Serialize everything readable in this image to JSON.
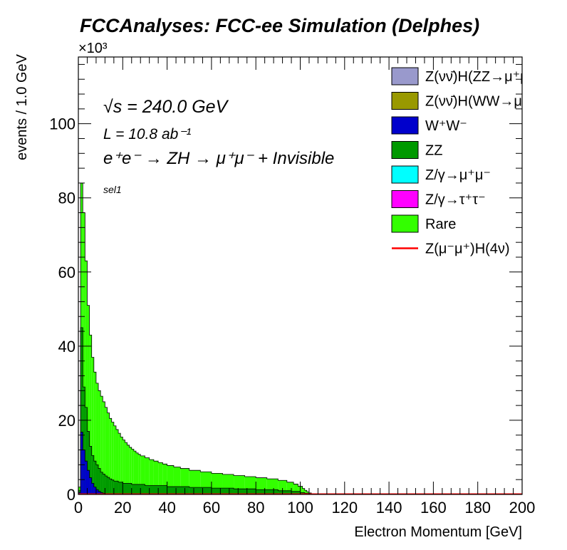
{
  "chart_data": {
    "type": "histogram-stacked",
    "title": "FCCAnalyses: FCC-ee Simulation (Delphes)",
    "xlabel": "Electron Momentum [GeV]",
    "ylabel": "events / 1.0 GeV",
    "y_multiplier": "×10³",
    "xlim": [
      0,
      200
    ],
    "ylim": [
      0,
      118
    ],
    "x_ticks": [
      "0",
      "20",
      "40",
      "60",
      "80",
      "100",
      "120",
      "140",
      "160",
      "180",
      "200"
    ],
    "y_ticks": [
      "0",
      "20",
      "40",
      "60",
      "80",
      "100"
    ],
    "bin_width": 1.0,
    "annotations": {
      "energy": "√s = 240.0 GeV",
      "lumi": "L = 10.8 ab⁻¹",
      "process": "e⁺e⁻ → ZH → μ⁺μ⁻ + Invisible",
      "selection": "sel1"
    },
    "legend": [
      {
        "label": "Z(νν̄)H(ZZ→μ⁺μ⁻ν⁺",
        "color": "#9999cc",
        "style": "box"
      },
      {
        "label": "Z(νν̄)H(WW→μ⁺νμ",
        "color": "#999900",
        "style": "box"
      },
      {
        "label": "W⁺W⁻",
        "color": "#0000cc",
        "style": "box"
      },
      {
        "label": "ZZ",
        "color": "#009900",
        "style": "box"
      },
      {
        "label": "Z/γ→μ⁺μ⁻",
        "color": "#00ffff",
        "style": "box"
      },
      {
        "label": "Z/γ→τ⁺τ⁻",
        "color": "#ff00ff",
        "style": "box"
      },
      {
        "label": "Rare",
        "color": "#33ff00",
        "style": "box"
      },
      {
        "label": "Z(μ⁻μ⁺)H(4ν)",
        "color": "#ff0000",
        "style": "line"
      }
    ],
    "series": [
      {
        "name": "W⁺W⁻",
        "color": "#0000cc",
        "bins": [
          {
            "range": [
              0,
              1
            ],
            "y": 0.5
          },
          {
            "range": [
              1,
              2
            ],
            "y": 16.8
          },
          {
            "range": [
              2,
              3
            ],
            "y": 12.0
          },
          {
            "range": [
              3,
              4
            ],
            "y": 9.0
          },
          {
            "range": [
              4,
              5
            ],
            "y": 6.5
          },
          {
            "range": [
              5,
              6
            ],
            "y": 4.5
          },
          {
            "range": [
              6,
              7
            ],
            "y": 3.0
          },
          {
            "range": [
              7,
              8
            ],
            "y": 2.0
          },
          {
            "range": [
              8,
              9
            ],
            "y": 1.3
          },
          {
            "range": [
              9,
              10
            ],
            "y": 0.8
          },
          {
            "range": [
              10,
              11
            ],
            "y": 0.5
          },
          {
            "range": [
              11,
              12
            ],
            "y": 0.3
          },
          {
            "range": [
              12,
              14
            ],
            "y": 0.2
          },
          {
            "range": [
              14,
              20
            ],
            "y": 0.1
          },
          {
            "range": [
              20,
              200
            ],
            "y": 0.0
          }
        ]
      },
      {
        "name": "ZZ",
        "color": "#009900",
        "bins": [
          {
            "range": [
              0,
              1
            ],
            "y": 1.0
          },
          {
            "range": [
              1,
              2
            ],
            "y": 45.0
          },
          {
            "range": [
              2,
              3
            ],
            "y": 29.0
          },
          {
            "range": [
              3,
              4
            ],
            "y": 23.5
          },
          {
            "range": [
              4,
              5
            ],
            "y": 17.0
          },
          {
            "range": [
              5,
              6
            ],
            "y": 13.0
          },
          {
            "range": [
              6,
              7
            ],
            "y": 10.5
          },
          {
            "range": [
              7,
              8
            ],
            "y": 9.0
          },
          {
            "range": [
              8,
              9
            ],
            "y": 8.0
          },
          {
            "range": [
              9,
              10
            ],
            "y": 7.0
          },
          {
            "range": [
              10,
              11
            ],
            "y": 6.0
          },
          {
            "range": [
              11,
              12
            ],
            "y": 5.5
          },
          {
            "range": [
              12,
              13
            ],
            "y": 5.0
          },
          {
            "range": [
              13,
              14
            ],
            "y": 4.6
          },
          {
            "range": [
              14,
              15
            ],
            "y": 4.2
          },
          {
            "range": [
              15,
              16
            ],
            "y": 3.9
          },
          {
            "range": [
              16,
              18
            ],
            "y": 3.6
          },
          {
            "range": [
              18,
              20
            ],
            "y": 3.3
          },
          {
            "range": [
              20,
              24
            ],
            "y": 3.0
          },
          {
            "range": [
              24,
              30
            ],
            "y": 2.7
          },
          {
            "range": [
              30,
              40
            ],
            "y": 2.4
          },
          {
            "range": [
              40,
              50
            ],
            "y": 2.1
          },
          {
            "range": [
              50,
              60
            ],
            "y": 1.9
          },
          {
            "range": [
              60,
              70
            ],
            "y": 1.7
          },
          {
            "range": [
              70,
              80
            ],
            "y": 1.5
          },
          {
            "range": [
              80,
              90
            ],
            "y": 1.3
          },
          {
            "range": [
              90,
              96
            ],
            "y": 1.0
          },
          {
            "range": [
              96,
              100
            ],
            "y": 0.8
          },
          {
            "range": [
              100,
              102
            ],
            "y": 0.5
          },
          {
            "range": [
              102,
              104
            ],
            "y": 0.3
          },
          {
            "range": [
              104,
              200
            ],
            "y": 0.0
          }
        ]
      },
      {
        "name": "Rare",
        "color": "#33ff00",
        "bins": [
          {
            "range": [
              0,
              1
            ],
            "y": 2.0
          },
          {
            "range": [
              1,
              2
            ],
            "y": 84.0
          },
          {
            "range": [
              2,
              3
            ],
            "y": 76.0
          },
          {
            "range": [
              3,
              4
            ],
            "y": 63.0
          },
          {
            "range": [
              4,
              5
            ],
            "y": 51.0
          },
          {
            "range": [
              5,
              6
            ],
            "y": 43.0
          },
          {
            "range": [
              6,
              7
            ],
            "y": 37.0
          },
          {
            "range": [
              7,
              8
            ],
            "y": 33.0
          },
          {
            "range": [
              8,
              9
            ],
            "y": 30.0
          },
          {
            "range": [
              9,
              10
            ],
            "y": 28.0
          },
          {
            "range": [
              10,
              11
            ],
            "y": 26.5
          },
          {
            "range": [
              11,
              12
            ],
            "y": 25.0
          },
          {
            "range": [
              12,
              13
            ],
            "y": 23.5
          },
          {
            "range": [
              13,
              14
            ],
            "y": 22.0
          },
          {
            "range": [
              14,
              15
            ],
            "y": 20.5
          },
          {
            "range": [
              15,
              16
            ],
            "y": 19.5
          },
          {
            "range": [
              16,
              17
            ],
            "y": 18.5
          },
          {
            "range": [
              17,
              18
            ],
            "y": 17.5
          },
          {
            "range": [
              18,
              19
            ],
            "y": 16.5
          },
          {
            "range": [
              19,
              20
            ],
            "y": 15.5
          },
          {
            "range": [
              20,
              21
            ],
            "y": 14.7
          },
          {
            "range": [
              21,
              22
            ],
            "y": 14.0
          },
          {
            "range": [
              22,
              23
            ],
            "y": 13.3
          },
          {
            "range": [
              23,
              24
            ],
            "y": 12.7
          },
          {
            "range": [
              24,
              25
            ],
            "y": 12.2
          },
          {
            "range": [
              25,
              26
            ],
            "y": 11.7
          },
          {
            "range": [
              26,
              27
            ],
            "y": 11.2
          },
          {
            "range": [
              27,
              28
            ],
            "y": 10.8
          },
          {
            "range": [
              28,
              30
            ],
            "y": 10.4
          },
          {
            "range": [
              30,
              32
            ],
            "y": 9.9
          },
          {
            "range": [
              32,
              34
            ],
            "y": 9.4
          },
          {
            "range": [
              34,
              36
            ],
            "y": 9.0
          },
          {
            "range": [
              36,
              38
            ],
            "y": 8.6
          },
          {
            "range": [
              38,
              40
            ],
            "y": 8.2
          },
          {
            "range": [
              40,
              43
            ],
            "y": 7.8
          },
          {
            "range": [
              43,
              46
            ],
            "y": 7.4
          },
          {
            "range": [
              46,
              50
            ],
            "y": 7.0
          },
          {
            "range": [
              50,
              55
            ],
            "y": 6.5
          },
          {
            "range": [
              55,
              60
            ],
            "y": 6.1
          },
          {
            "range": [
              60,
              65
            ],
            "y": 5.7
          },
          {
            "range": [
              65,
              70
            ],
            "y": 5.4
          },
          {
            "range": [
              70,
              75
            ],
            "y": 5.1
          },
          {
            "range": [
              75,
              80
            ],
            "y": 4.8
          },
          {
            "range": [
              80,
              85
            ],
            "y": 4.5
          },
          {
            "range": [
              85,
              90
            ],
            "y": 4.2
          },
          {
            "range": [
              90,
              94
            ],
            "y": 3.8
          },
          {
            "range": [
              94,
              97
            ],
            "y": 3.3
          },
          {
            "range": [
              97,
              99
            ],
            "y": 2.8
          },
          {
            "range": [
              99,
              101
            ],
            "y": 2.2
          },
          {
            "range": [
              101,
              102
            ],
            "y": 1.6
          },
          {
            "range": [
              102,
              103
            ],
            "y": 1.1
          },
          {
            "range": [
              103,
              104
            ],
            "y": 0.7
          },
          {
            "range": [
              104,
              105
            ],
            "y": 0.4
          },
          {
            "range": [
              105,
              106
            ],
            "y": 0.2
          },
          {
            "range": [
              106,
              200
            ],
            "y": 0.0
          }
        ]
      },
      {
        "name": "Z(μ⁻μ⁺)H(4ν)",
        "color": "#ff0000",
        "bins": [
          {
            "range": [
              0,
              200
            ],
            "y": 0.1
          }
        ]
      }
    ]
  }
}
